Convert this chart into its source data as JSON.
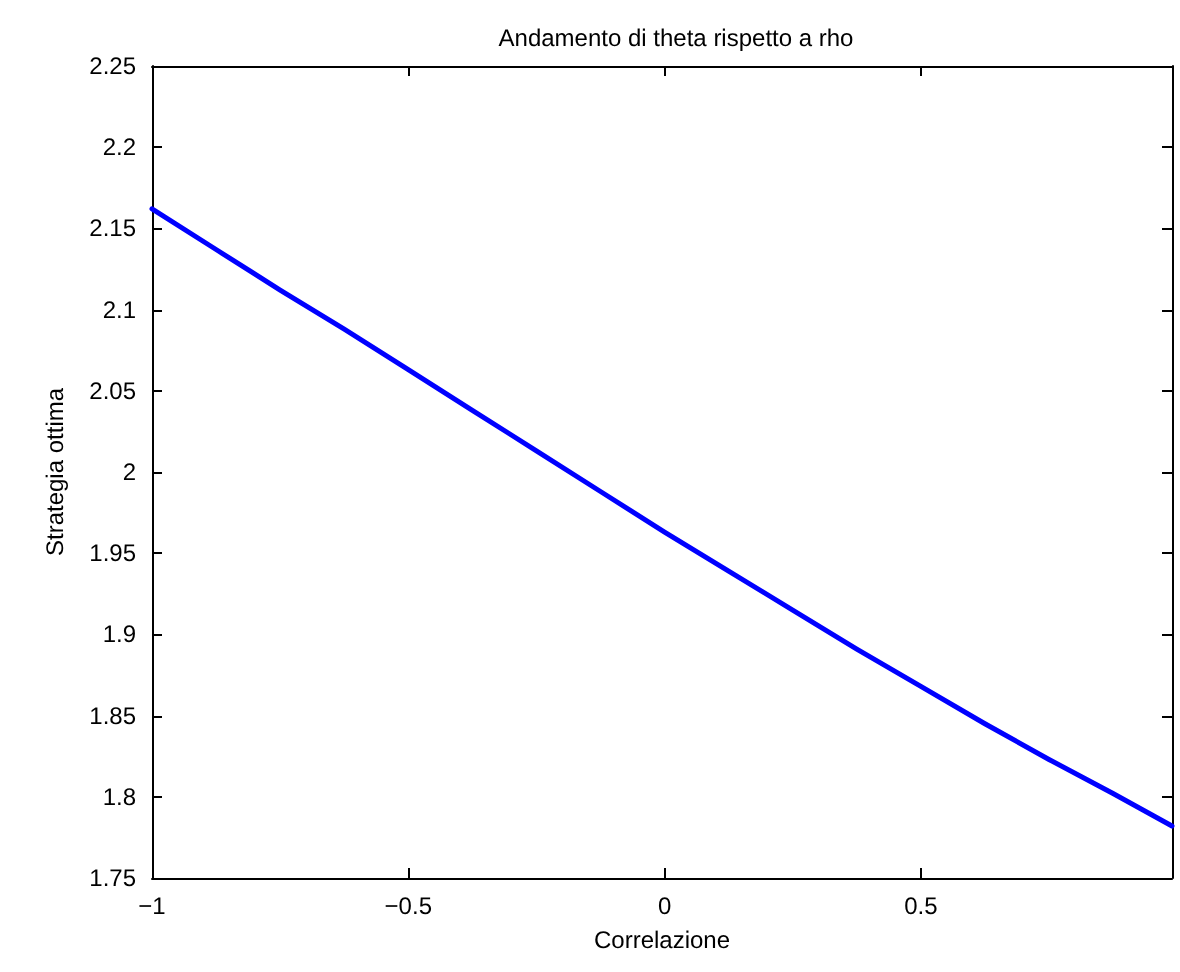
{
  "chart_data": {
    "type": "line",
    "title": "Andamento di theta rispetto a rho",
    "xlabel": "Correlazione",
    "ylabel": "Strategia ottima",
    "x": [
      -1,
      -0.875,
      -0.75,
      -0.625,
      -0.5,
      -0.375,
      -0.25,
      -0.125,
      0,
      0.125,
      0.25,
      0.375,
      0.5,
      0.625,
      0.75,
      0.875,
      0.99
    ],
    "series": [
      {
        "color": "#0000ff",
        "values": [
          2.162,
          2.137,
          2.112,
          2.088,
          2.063,
          2.038,
          2.013,
          1.988,
          1.963,
          1.939,
          1.915,
          1.891,
          1.868,
          1.845,
          1.823,
          1.802,
          1.782
        ]
      }
    ],
    "xlim": [
      -1,
      0.99
    ],
    "ylim": [
      1.75,
      2.25
    ],
    "xticks": [
      {
        "value": -1,
        "label": "−1"
      },
      {
        "value": -0.5,
        "label": "−0.5"
      },
      0,
      0.5
    ],
    "yticks": [
      1.75,
      1.8,
      1.85,
      1.9,
      1.95,
      2,
      2.05,
      2.1,
      2.15,
      2.2,
      2.25
    ],
    "grid": false,
    "marker": "none",
    "line_style": "solid"
  }
}
